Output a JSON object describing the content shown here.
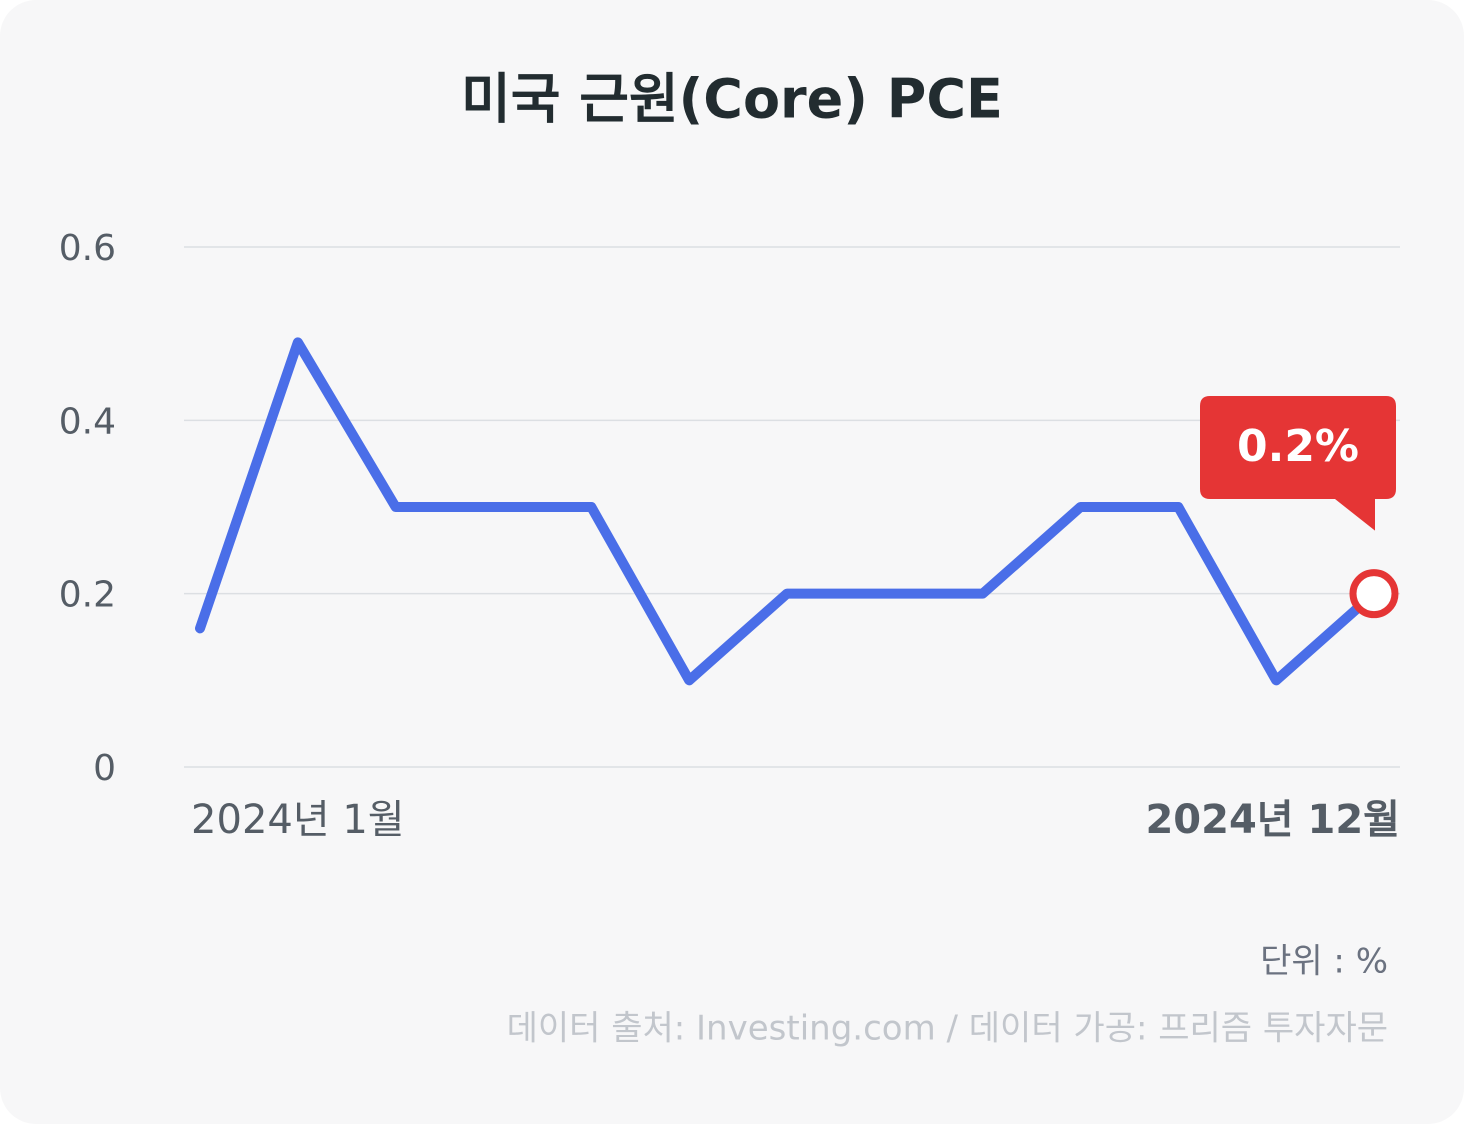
{
  "chart_data": {
    "type": "line",
    "title": "미국 근원(Core) PCE",
    "categories": [
      null,
      "2024년 1월",
      null,
      null,
      null,
      null,
      null,
      null,
      null,
      null,
      null,
      null,
      "2024년 12월"
    ],
    "series": [
      {
        "name": "Core PCE",
        "color": "#4a6ee8",
        "values": [
          0.16,
          0.49,
          0.3,
          0.3,
          0.3,
          0.1,
          0.2,
          0.2,
          0.2,
          0.3,
          0.3,
          0.1,
          0.2
        ],
        "value_labels": [
          null,
          null,
          null,
          null,
          null,
          null,
          null,
          null,
          null,
          null,
          null,
          null,
          "0.2%"
        ]
      }
    ],
    "ylim": [
      0,
      0.6
    ],
    "yticks": [
      0,
      0.2,
      0.4,
      0.6
    ],
    "grid": true,
    "highlight_color": "#e53535",
    "unit_note": "단위 : %",
    "source": "데이터 출처: Investing.com / 데이터 가공: 프리즘 투자자문"
  }
}
